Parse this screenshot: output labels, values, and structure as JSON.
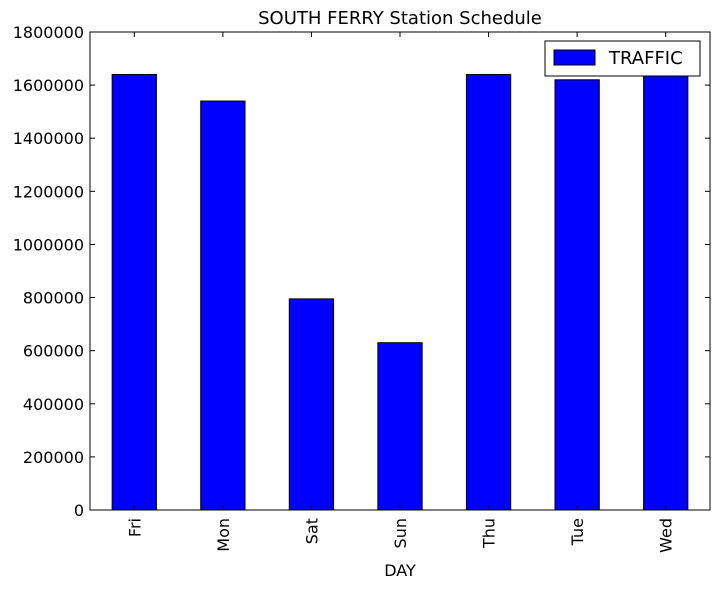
{
  "chart_data": {
    "type": "bar",
    "title": "SOUTH FERRY Station Schedule",
    "xlabel": "DAY",
    "ylabel": "",
    "categories": [
      "Fri",
      "Mon",
      "Sat",
      "Sun",
      "Thu",
      "Tue",
      "Wed"
    ],
    "series": [
      {
        "name": "TRAFFIC",
        "color": "#0000ff",
        "values": [
          1640000,
          1540000,
          795000,
          630000,
          1640000,
          1620000,
          1635000
        ]
      }
    ],
    "ylim": [
      0,
      1800000
    ],
    "yticks": [
      0,
      200000,
      400000,
      600000,
      800000,
      1000000,
      1200000,
      1400000,
      1600000,
      1800000
    ],
    "ytick_labels": [
      "0",
      "200000",
      "400000",
      "600000",
      "800000",
      "1000000",
      "1200000",
      "1400000",
      "1600000",
      "1800000"
    ],
    "grid": false,
    "legend_position": "top-right"
  }
}
